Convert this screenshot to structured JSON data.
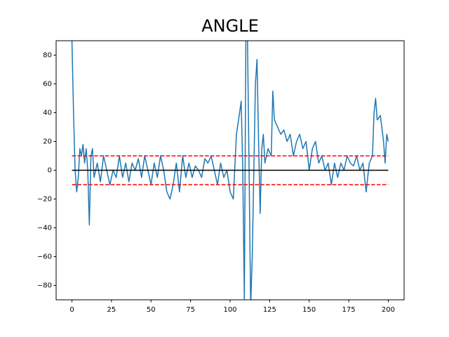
{
  "chart_data": {
    "type": "line",
    "title": "ANGLE",
    "x": [
      0,
      1,
      2,
      3,
      4,
      5,
      6,
      7,
      8,
      9,
      10,
      11,
      12,
      13,
      14,
      16,
      18,
      20,
      22,
      24,
      26,
      28,
      30,
      32,
      34,
      36,
      38,
      40,
      42,
      44,
      46,
      48,
      50,
      52,
      54,
      56,
      58,
      60,
      62,
      64,
      66,
      68,
      70,
      72,
      74,
      76,
      78,
      80,
      82,
      84,
      86,
      88,
      90,
      92,
      94,
      96,
      98,
      100,
      102,
      104,
      106,
      107,
      108,
      109,
      110,
      111,
      112,
      113,
      114,
      115,
      116,
      117,
      118,
      119,
      120,
      121,
      122,
      124,
      126,
      127,
      128,
      130,
      132,
      134,
      136,
      138,
      140,
      142,
      144,
      146,
      148,
      150,
      152,
      154,
      156,
      158,
      160,
      162,
      164,
      166,
      168,
      170,
      172,
      174,
      176,
      178,
      180,
      182,
      184,
      186,
      188,
      190,
      191,
      192,
      193,
      195,
      197,
      198,
      199,
      200
    ],
    "series": [
      {
        "color": "#1f77b4",
        "values": [
          90,
          40,
          0,
          -15,
          -5,
          15,
          10,
          18,
          5,
          15,
          0,
          -38,
          10,
          15,
          -5,
          5,
          -8,
          10,
          0,
          -10,
          0,
          -5,
          10,
          -5,
          5,
          -8,
          5,
          0,
          8,
          -5,
          10,
          0,
          -10,
          5,
          -5,
          10,
          0,
          -15,
          -20,
          -10,
          5,
          -15,
          10,
          -5,
          5,
          -5,
          3,
          0,
          -5,
          8,
          5,
          10,
          0,
          -10,
          5,
          -5,
          0,
          -15,
          -20,
          25,
          40,
          48,
          0,
          -90,
          100,
          90,
          0,
          -95,
          -60,
          0,
          60,
          77,
          20,
          -30,
          15,
          25,
          5,
          15,
          10,
          55,
          35,
          30,
          25,
          28,
          20,
          25,
          10,
          20,
          25,
          15,
          20,
          0,
          15,
          20,
          5,
          10,
          0,
          5,
          -10,
          5,
          -5,
          5,
          0,
          10,
          5,
          3,
          10,
          0,
          5,
          -15,
          5,
          10,
          40,
          50,
          35,
          38,
          20,
          5,
          25,
          20
        ]
      }
    ],
    "hlines": [
      {
        "value": 0,
        "xmin": 0,
        "xmax": 200,
        "color": "#000000",
        "dashed": false
      },
      {
        "value": 10,
        "xmin": 0,
        "xmax": 200,
        "color": "#ff0000",
        "dashed": true
      },
      {
        "value": -10,
        "xmin": 0,
        "xmax": 200,
        "color": "#ff0000",
        "dashed": true
      }
    ],
    "xlim": [
      -10,
      210
    ],
    "ylim": [
      -90,
      90
    ],
    "xticks": [
      0,
      25,
      50,
      75,
      100,
      125,
      150,
      175,
      200
    ],
    "yticks": [
      {
        "value": -80,
        "label": "−80"
      },
      {
        "value": -60,
        "label": "−60"
      },
      {
        "value": -40,
        "label": "−40"
      },
      {
        "value": -20,
        "label": "−20"
      },
      0,
      20,
      40,
      60,
      80
    ]
  }
}
